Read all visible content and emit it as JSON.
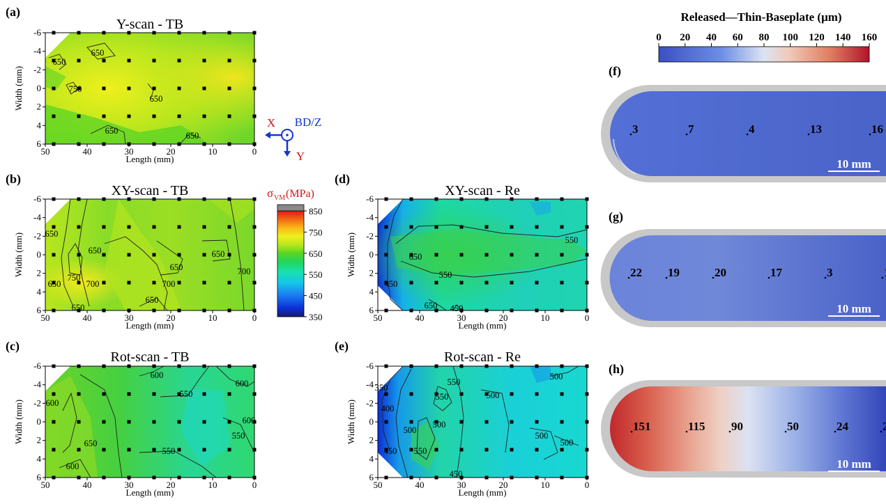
{
  "colors": {
    "vm_scale": [
      "#1a1a6e",
      "#0b2fd6",
      "#1a7af0",
      "#16c6e8",
      "#18e0b0",
      "#22d65a",
      "#5ad424",
      "#b8e61e",
      "#eef01c",
      "#f8b818",
      "#f06a14",
      "#e01818",
      "#a80f0f"
    ],
    "disp_scale": [
      "#3a4fc4",
      "#6d8fe6",
      "#c9d6f0",
      "#f0c9b8",
      "#e07a60",
      "#b01428"
    ],
    "plate_bg": "#c8c8c8",
    "marker": "#000000",
    "axes_icon": "#1535d0",
    "axes_icon_label": "#d01818"
  },
  "chart_data": [
    {
      "id": "a",
      "type": "heatmap",
      "panel_label": "(a)",
      "title": "Y-scan - TB",
      "xlabel": "Length (mm)",
      "ylabel": "Width (mm)",
      "xlim": [
        50,
        0
      ],
      "ylim": [
        -6,
        6
      ],
      "xticks": [
        "50",
        "40",
        "30",
        "20",
        "10",
        "0"
      ],
      "yticks": [
        "-6",
        "-4",
        "-2",
        "0",
        "2",
        "4",
        "6"
      ],
      "contour_levels": [
        "650",
        "650",
        "750",
        "650",
        "650",
        "650"
      ],
      "measurement_points_x": [
        48,
        42,
        36,
        30,
        24,
        18,
        12,
        6,
        0
      ],
      "measurement_points_y": [
        -6,
        -3,
        0,
        3,
        6
      ]
    },
    {
      "id": "b",
      "type": "heatmap",
      "panel_label": "(b)",
      "title": "XY-scan - TB",
      "xlabel": "Length (mm)",
      "ylabel": "Width (mm)",
      "xlim": [
        50,
        0
      ],
      "ylim": [
        -6,
        6
      ],
      "xticks": [
        "50",
        "40",
        "30",
        "20",
        "10",
        "0"
      ],
      "yticks": [
        "-6",
        "-4",
        "-2",
        "0",
        "2",
        "4",
        "6"
      ],
      "contour_levels": [
        "650",
        "650",
        "650",
        "650",
        "750",
        "700",
        "700",
        "650",
        "650",
        "700",
        "650"
      ]
    },
    {
      "id": "c",
      "type": "heatmap",
      "panel_label": "(c)",
      "title": "Rot-scan - TB",
      "xlabel": "Length (mm)",
      "ylabel": "Width (mm)",
      "xlim": [
        50,
        0
      ],
      "ylim": [
        -6,
        6
      ],
      "xticks": [
        "50",
        "40",
        "30",
        "20",
        "10",
        "0"
      ],
      "yticks": [
        "-6",
        "-4",
        "-2",
        "0",
        "2",
        "4",
        "6"
      ],
      "contour_levels": [
        "600",
        "600",
        "550",
        "600",
        "600",
        "550",
        "650",
        "550",
        "600"
      ]
    },
    {
      "id": "d",
      "type": "heatmap",
      "panel_label": "(d)",
      "title": "XY-scan - Re",
      "xlabel": "Length (mm)",
      "ylabel": "Width (mm)",
      "xlim": [
        50,
        0
      ],
      "ylim": [
        -6,
        6
      ],
      "xticks": [
        "50",
        "40",
        "30",
        "20",
        "10",
        "0"
      ],
      "yticks": [
        "-6",
        "-4",
        "-2",
        "0",
        "2",
        "4",
        "6"
      ],
      "contour_levels": [
        "550",
        "650",
        "550",
        "450",
        "650",
        "450"
      ]
    },
    {
      "id": "e",
      "type": "heatmap",
      "panel_label": "(e)",
      "title": "Rot-scan - Re",
      "xlabel": "Length (mm)",
      "ylabel": "Width (mm)",
      "xlim": [
        50,
        0
      ],
      "ylim": [
        -6,
        6
      ],
      "xticks": [
        "50",
        "40",
        "30",
        "20",
        "10",
        "0"
      ],
      "yticks": [
        "-6",
        "-4",
        "-2",
        "0",
        "2",
        "4",
        "6"
      ],
      "contour_levels": [
        "350",
        "550",
        "550",
        "500",
        "500",
        "400",
        "500",
        "500",
        "500",
        "500",
        "450",
        "550",
        "450"
      ]
    },
    {
      "id": "vm_colorbar",
      "type": "colorbar",
      "label_main": "σ",
      "label_sub": "VM",
      "label_unit": "(MPa)",
      "ticks": [
        "850",
        "750",
        "650",
        "550",
        "450",
        "350"
      ],
      "range": [
        350,
        850
      ]
    },
    {
      "id": "disp_colorbar",
      "type": "colorbar",
      "title": "Released—Thin-Baseplate (μm)",
      "ticks": [
        "0",
        "20",
        "40",
        "60",
        "80",
        "100",
        "120",
        "140",
        "160"
      ],
      "range": [
        0,
        160
      ]
    },
    {
      "id": "f",
      "type": "surface_map",
      "panel_label": "(f)",
      "annotations": [
        {
          "text": "3",
          "value": 3
        },
        {
          "text": "7",
          "value": 7
        },
        {
          "text": "4",
          "value": 4
        },
        {
          "text": "13",
          "value": 13
        },
        {
          "text": "16",
          "value": 16
        }
      ],
      "scalebar": "10 mm"
    },
    {
      "id": "g",
      "type": "surface_map",
      "panel_label": "(g)",
      "annotations": [
        {
          "text": "22",
          "value": 22
        },
        {
          "text": "19",
          "value": 19
        },
        {
          "text": "20",
          "value": 20
        },
        {
          "text": "17",
          "value": 17
        },
        {
          "text": "3",
          "value": 3
        },
        {
          "text": "1",
          "value": 1
        }
      ],
      "scalebar": "10 mm"
    },
    {
      "id": "h",
      "type": "surface_map",
      "panel_label": "(h)",
      "annotations": [
        {
          "text": "151",
          "value": 151
        },
        {
          "text": "115",
          "value": 115
        },
        {
          "text": "90",
          "value": 90
        },
        {
          "text": "50",
          "value": 50
        },
        {
          "text": "24",
          "value": 24
        },
        {
          "text": "2",
          "value": 2
        }
      ],
      "scalebar": "10 mm"
    }
  ],
  "axes_icon": {
    "x_label": "X",
    "z_label": "BD/Z",
    "y_label": "Y"
  }
}
